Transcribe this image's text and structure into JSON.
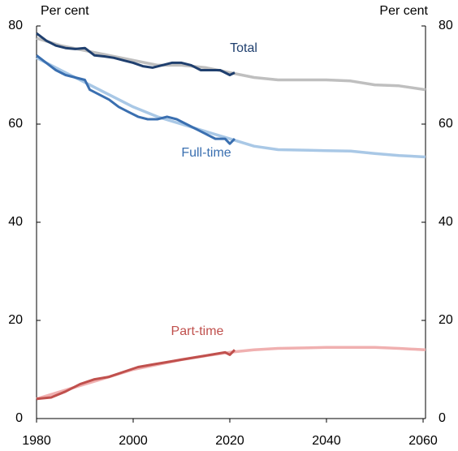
{
  "chart_data": {
    "type": "line",
    "y_label": "Per cent",
    "y2_label": "Per cent",
    "xlim": [
      1980,
      2060.5
    ],
    "xticks": [
      1980,
      2000,
      2020,
      2040,
      2060
    ],
    "ylim": [
      0,
      80
    ],
    "yticks": [
      0,
      20,
      40,
      60,
      80
    ],
    "y2lim": [
      0,
      80
    ],
    "y2ticks": [
      0,
      20,
      40,
      60,
      80
    ],
    "series": [
      {
        "name": "Total",
        "color": "#1f3f6e",
        "x": [
          1980,
          1982,
          1984,
          1986,
          1988,
          1990,
          1992,
          1994,
          1996,
          1998,
          2000,
          2002,
          2004,
          2006,
          2008,
          2010,
          2012,
          2014,
          2016,
          2018,
          2020,
          2021
        ],
        "values": [
          78.5,
          77,
          76,
          75.5,
          75.3,
          75.5,
          74,
          73.8,
          73.5,
          73,
          72.5,
          71.8,
          71.5,
          72,
          72.5,
          72.5,
          72,
          71,
          71,
          71,
          70,
          70.5
        ]
      },
      {
        "color": "#bfbfbf",
        "x": [
          1980,
          1985,
          1990,
          1995,
          2000,
          2005,
          2010,
          2015,
          2020,
          2025,
          2030,
          2040,
          2045,
          2050,
          2055,
          2060.5
        ],
        "values": [
          77.5,
          76,
          75,
          74,
          73,
          72,
          72,
          71.5,
          70.5,
          69.5,
          69,
          69,
          68.8,
          68,
          67.8,
          67
        ]
      },
      {
        "name": "Full-time",
        "color": "#3a6fb0",
        "x": [
          1980,
          1982,
          1984,
          1986,
          1988,
          1990,
          1991,
          1993,
          1995,
          1997,
          1999,
          2001,
          2003,
          2005,
          2007,
          2009,
          2011,
          2013,
          2015,
          2017,
          2019,
          2020,
          2021
        ],
        "values": [
          74,
          72.5,
          71,
          70,
          69.5,
          69,
          67,
          66,
          65,
          63.5,
          62.5,
          61.5,
          61,
          61,
          61.5,
          61,
          60,
          59,
          58,
          57,
          57,
          56,
          57
        ]
      },
      {
        "color": "#a9c8e6",
        "x": [
          1980,
          1985,
          1990,
          1995,
          2000,
          2005,
          2010,
          2015,
          2020,
          2025,
          2030,
          2040,
          2045,
          2050,
          2055,
          2060.5
        ],
        "values": [
          73.5,
          71,
          68.5,
          66,
          63.5,
          61.5,
          60,
          58.5,
          57,
          55.5,
          54.8,
          54.6,
          54.5,
          54,
          53.6,
          53.3
        ]
      },
      {
        "name": "Part-time",
        "color": "#c0504d",
        "x": [
          1980,
          1983,
          1986,
          1989,
          1992,
          1995,
          1998,
          2001,
          2004,
          2007,
          2010,
          2013,
          2016,
          2019,
          2020,
          2021
        ],
        "values": [
          4,
          4.3,
          5.5,
          7,
          8,
          8.5,
          9.5,
          10.5,
          11,
          11.5,
          12,
          12.5,
          13,
          13.5,
          13,
          14
        ]
      },
      {
        "color": "#f0b0b0",
        "x": [
          1980,
          1985,
          1990,
          1995,
          2000,
          2005,
          2010,
          2015,
          2020,
          2025,
          2030,
          2040,
          2050,
          2055,
          2060.5
        ],
        "values": [
          4,
          5.5,
          7,
          8.5,
          10,
          11,
          12,
          12.8,
          13.5,
          14,
          14.3,
          14.5,
          14.5,
          14.3,
          14
        ]
      }
    ]
  }
}
